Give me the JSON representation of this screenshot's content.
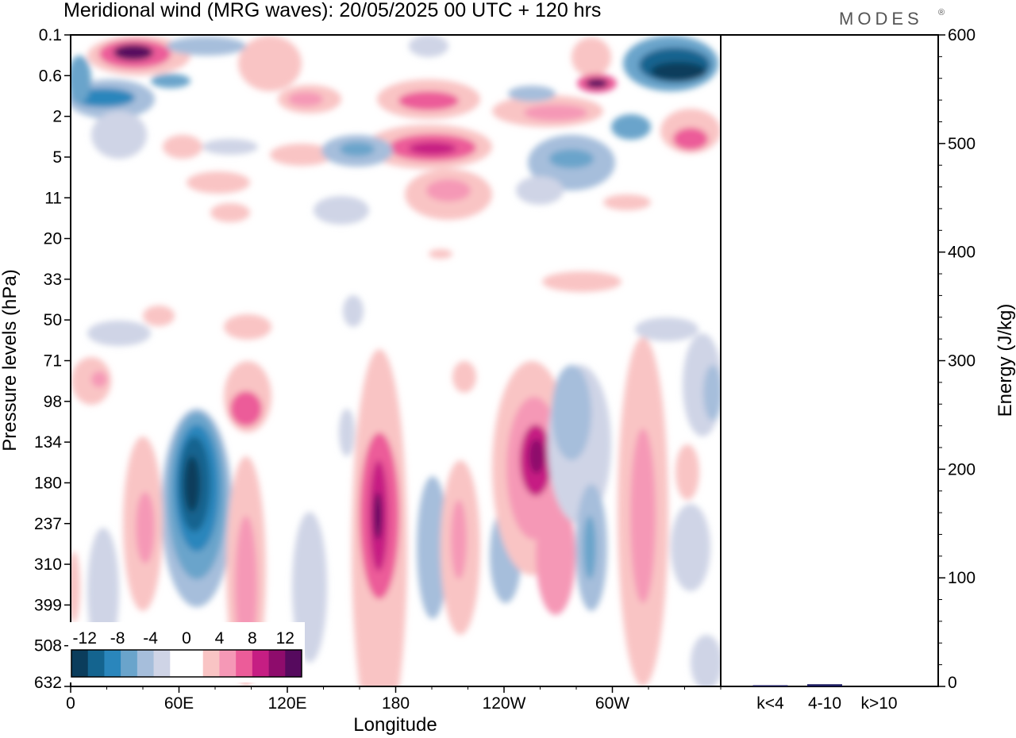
{
  "title": "Meridional wind (MRG waves):  20/05/2025  00 UTC  + 120 hrs",
  "brand": "MODES",
  "brand_mark": "®",
  "chart_data": {
    "type": "heatmap",
    "title": "Meridional wind (MRG waves):  20/05/2025  00 UTC  + 120 hrs",
    "xlabel": "Longitude",
    "ylabel": "Pressure levels (hPa)",
    "x_ticks": [
      "0",
      "60E",
      "120E",
      "180",
      "120W",
      "60W"
    ],
    "x_range_deg_east": [
      0,
      360
    ],
    "x_tick_values_deg_east": [
      0,
      60,
      120,
      180,
      240,
      300
    ],
    "y_ticks": [
      "0.1",
      "0.6",
      "2",
      "5",
      "11",
      "20",
      "33",
      "50",
      "71",
      "98",
      "134",
      "180",
      "237",
      "310",
      "399",
      "508",
      "632"
    ],
    "colorbar": {
      "labels": [
        "-12",
        "-8",
        "-4",
        "0",
        "4",
        "8",
        "12"
      ],
      "colors": [
        "#0b3d5c",
        "#14648f",
        "#2a86bc",
        "#6aa4cb",
        "#a6bedb",
        "#cfd4e6",
        "#ffffff",
        "#ffffff",
        "#f9c4c4",
        "#f598b6",
        "#ec5c99",
        "#c61e83",
        "#8e0c6c",
        "#560a5e"
      ]
    },
    "energy_panel": {
      "type": "bar",
      "ylabel": "Energy (J/kg)",
      "ylim": [
        0,
        600
      ],
      "y_ticks": [
        "0",
        "100",
        "200",
        "300",
        "400",
        "500",
        "600"
      ],
      "categories": [
        "k<4",
        "4-10",
        "k>10"
      ],
      "values": [
        0.5,
        2,
        0
      ],
      "bar_color": "#1a1a5e"
    }
  }
}
